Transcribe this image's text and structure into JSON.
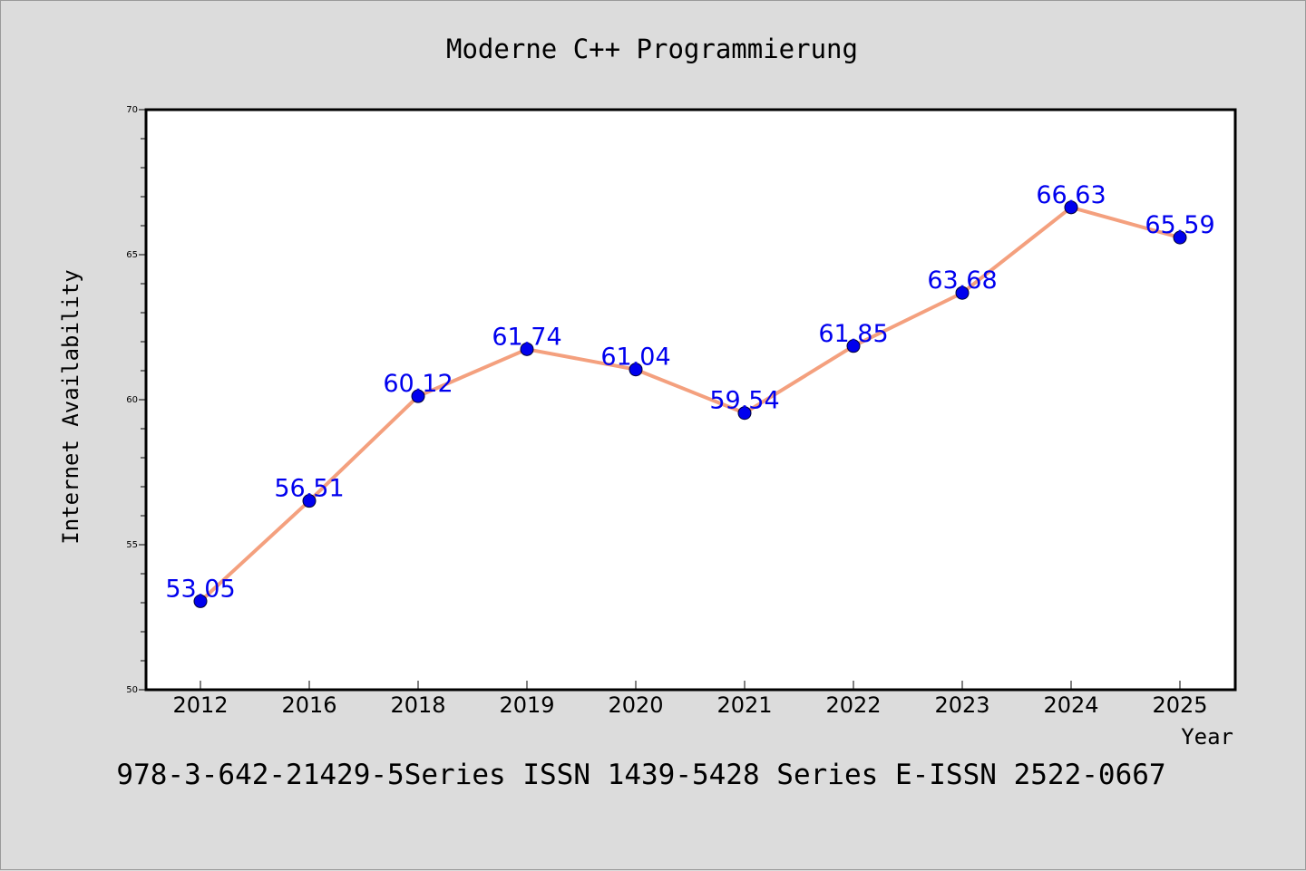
{
  "chart_data": {
    "type": "line",
    "title": "Moderne C++ Programmierung",
    "xlabel": "Year",
    "ylabel": "Internet Availability",
    "categories": [
      "2012",
      "2016",
      "2018",
      "2019",
      "2020",
      "2021",
      "2022",
      "2023",
      "2024",
      "2025"
    ],
    "series": [
      {
        "values": [
          53.05,
          56.51,
          60.12,
          61.74,
          61.04,
          59.54,
          61.85,
          63.68,
          66.63,
          65.59
        ],
        "labels": [
          "53.05",
          "56.51",
          "60.12",
          "61.74",
          "61.04",
          "59.54",
          "61.85",
          "63.68",
          "66.63",
          "65.59"
        ],
        "line_color": "#f4a07e",
        "marker_color": "#0000ee",
        "label_color": "#0000ee"
      }
    ],
    "ylim": [
      50,
      70
    ],
    "yticks": [
      "50",
      "55",
      "60",
      "65",
      "70"
    ],
    "grid": false,
    "legend": "none"
  },
  "footer": "978-3-642-21429-5Series ISSN 1439-5428 Series E-ISSN 2522-0667",
  "colors": {
    "background": "#dcdcdc",
    "plot_area": "#ffffff",
    "axis": "#000000"
  }
}
